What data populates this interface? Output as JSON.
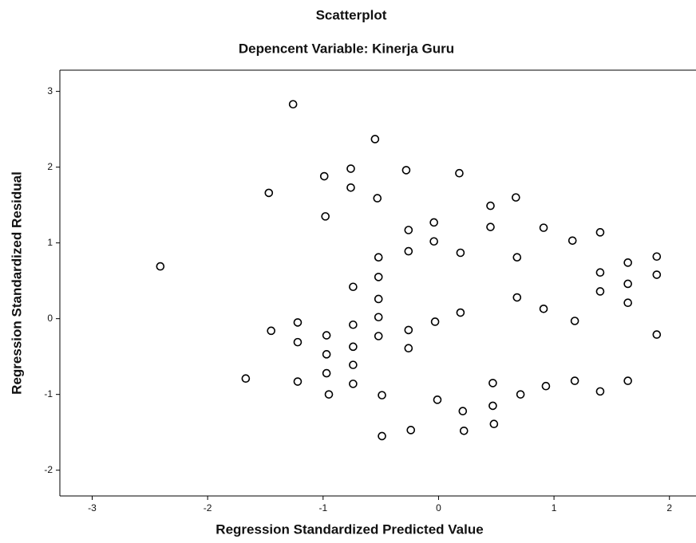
{
  "chart_data": {
    "type": "scatter",
    "title": "Scatterplot",
    "subtitle": "Depencent Variable: Kinerja Guru",
    "x_label": "Regression Standardized Predicted Value",
    "y_label": "Regression Standardized Residual",
    "xlim": [
      -3.28,
      2.23
    ],
    "ylim": [
      -2.34,
      3.28
    ],
    "xticks": [
      -3,
      -2,
      -1,
      0,
      1,
      2
    ],
    "yticks": [
      -2,
      -1,
      0,
      1,
      2,
      3
    ],
    "grid": false,
    "color": "#000000",
    "x": [
      -1.26,
      -0.55,
      -1.47,
      -0.99,
      -0.76,
      -0.76,
      -0.53,
      -0.28,
      0.18,
      0.45,
      0.67,
      -0.98,
      -0.04,
      -0.26,
      -0.04,
      -0.26,
      0.19,
      0.45,
      0.91,
      1.16,
      1.4,
      -2.41,
      -0.52,
      0.68,
      1.4,
      1.64,
      1.89,
      -0.52,
      -0.74,
      1.64,
      1.89,
      -0.52,
      0.68,
      1.4,
      1.64,
      0.91,
      0.19,
      -0.52,
      -0.03,
      1.18,
      -1.45,
      -1.22,
      -0.74,
      -0.97,
      -0.52,
      -0.26,
      1.89,
      -1.22,
      -0.74,
      -0.97,
      -0.26,
      -0.74,
      -0.97,
      -1.67,
      -1.22,
      -0.74,
      0.47,
      1.18,
      1.4,
      1.64,
      -0.95,
      -0.49,
      0.71,
      0.93,
      -0.01,
      0.47,
      0.21,
      -0.49,
      -0.24,
      0.22,
      0.48
    ],
    "values": [
      2.83,
      2.37,
      1.66,
      1.88,
      1.98,
      1.73,
      1.59,
      1.96,
      1.92,
      1.49,
      1.6,
      1.35,
      1.27,
      1.17,
      1.02,
      0.89,
      0.87,
      1.21,
      1.2,
      1.03,
      1.14,
      0.69,
      0.81,
      0.81,
      0.61,
      0.74,
      0.82,
      0.55,
      0.42,
      0.46,
      0.58,
      0.26,
      0.28,
      0.36,
      0.21,
      0.13,
      0.08,
      0.02,
      -0.04,
      -0.03,
      -0.16,
      -0.05,
      -0.08,
      -0.22,
      -0.23,
      -0.15,
      -0.21,
      -0.31,
      -0.37,
      -0.47,
      -0.39,
      -0.61,
      -0.72,
      -0.79,
      -0.83,
      -0.86,
      -0.85,
      -0.82,
      -0.96,
      -0.82,
      -1.0,
      -1.01,
      -1.0,
      -0.89,
      -1.07,
      -1.15,
      -1.22,
      -1.55,
      -1.47,
      -1.48,
      -1.39
    ]
  }
}
